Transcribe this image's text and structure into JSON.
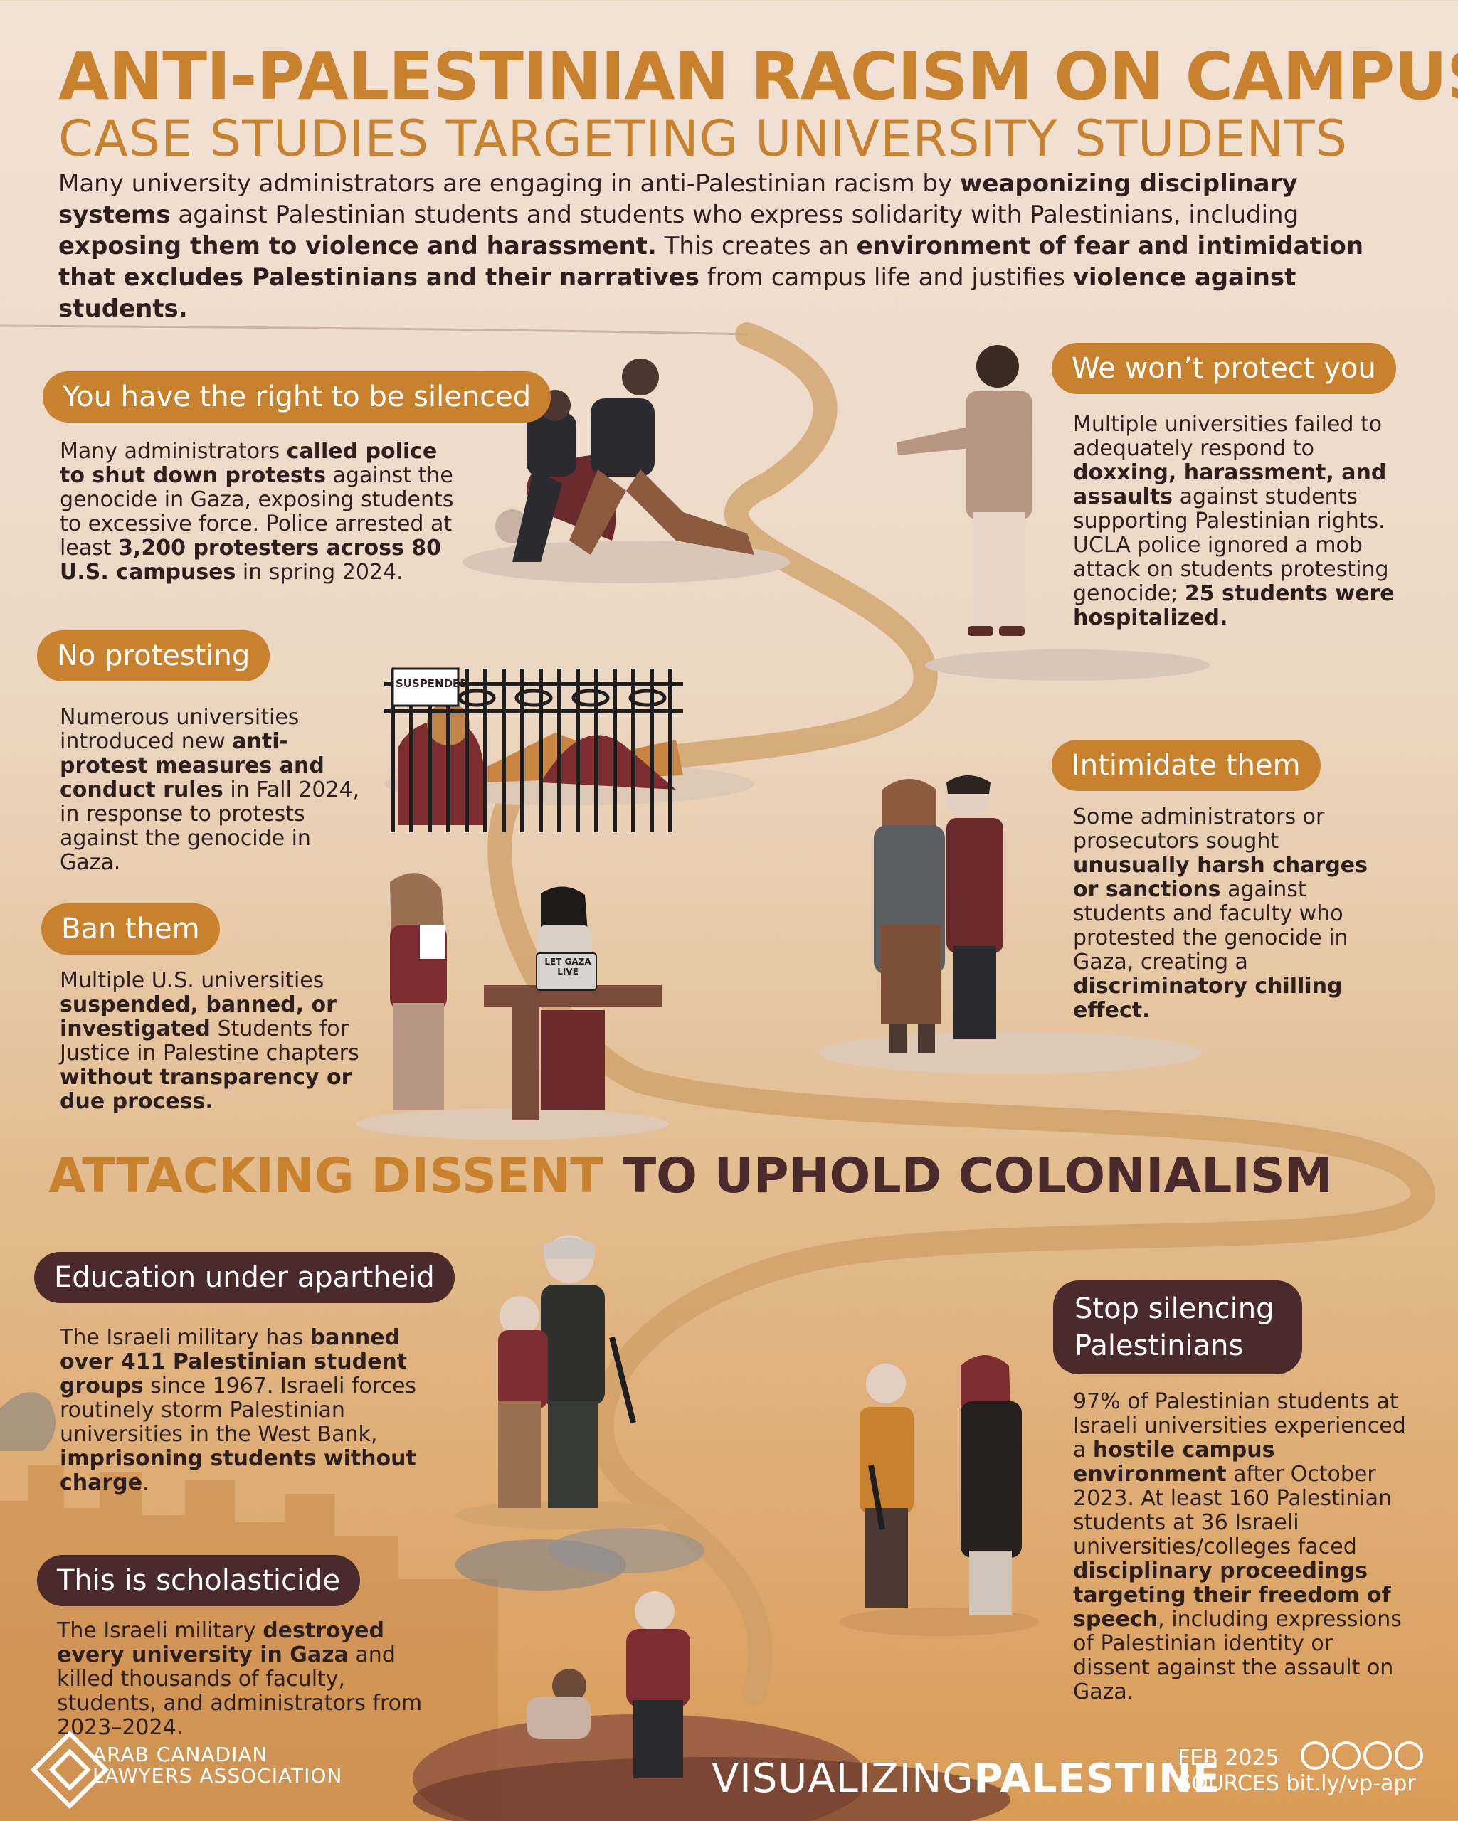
{
  "header": {
    "title": "ANTI-PALESTINIAN RACISM ON CAMPUS",
    "subtitle": "CASE STUDIES TARGETING UNIVERSITY STUDENTS",
    "intro": [
      {
        "t": "Many university administrators are engaging in anti-Palestinian racism by ",
        "b": false
      },
      {
        "t": "weaponizing disciplinary systems",
        "b": true
      },
      {
        "t": " against Palestinian students and students who express solidarity with Palestinians, including ",
        "b": false
      },
      {
        "t": "exposing them to violence and harassment.",
        "b": true
      },
      {
        "t": " This creates an ",
        "b": false
      },
      {
        "t": "environment of fear and intimidation that excludes Palestinians and their narratives",
        "b": true
      },
      {
        "t": " from campus life and justifies ",
        "b": false
      },
      {
        "t": "violence against students.",
        "b": true
      }
    ]
  },
  "sections": {
    "silenced": {
      "label": "You have the right to be silenced",
      "text": [
        {
          "t": "Many administrators ",
          "b": false
        },
        {
          "t": "called police to shut down protests",
          "b": true
        },
        {
          "t": " against the genocide in Gaza, exposing students to excessive force. Police arrested at least ",
          "b": false
        },
        {
          "t": "3,200 protesters across 80 U.S. campuses",
          "b": true
        },
        {
          "t": " in spring 2024.",
          "b": false
        }
      ]
    },
    "protect": {
      "label": "We won’t protect you",
      "text": [
        {
          "t": "Multiple universities failed to adequately respond to ",
          "b": false
        },
        {
          "t": "doxxing, harassment, and assaults",
          "b": true
        },
        {
          "t": " against students supporting Palestinian rights. UCLA police ignored a mob attack on students protesting genocide; ",
          "b": false
        },
        {
          "t": "25 students were hospitalized.",
          "b": true
        }
      ]
    },
    "no_protesting": {
      "label": "No protesting",
      "sign": "SUSPENDED",
      "text": [
        {
          "t": "Numerous universities introduced new ",
          "b": false
        },
        {
          "t": "anti-protest measures and conduct rules",
          "b": true
        },
        {
          "t": " in Fall 2024, in response to protests against the genocide in Gaza.",
          "b": false
        }
      ]
    },
    "intimidate": {
      "label": "Intimidate them",
      "text": [
        {
          "t": "Some administrators or prosecutors sought ",
          "b": false
        },
        {
          "t": "unusually harsh charges or sanctions",
          "b": true
        },
        {
          "t": " against students and faculty who protested the genocide in Gaza, creating a ",
          "b": false
        },
        {
          "t": "discriminatory chilling effect.",
          "b": true
        }
      ]
    },
    "ban": {
      "label": "Ban them",
      "laptop_sticker": "LET GAZA LIVE",
      "text": [
        {
          "t": "Multiple U.S. universities ",
          "b": false
        },
        {
          "t": "suspended, banned, or investigated",
          "b": true
        },
        {
          "t": " Students for Justice in Palestine chapters ",
          "b": false
        },
        {
          "t": "without transparency or due process.",
          "b": true
        }
      ]
    },
    "apartheid": {
      "label": "Education under apartheid",
      "text": [
        {
          "t": "The Israeli military has ",
          "b": false
        },
        {
          "t": "banned over 411 Palestinian student groups",
          "b": true
        },
        {
          "t": " since 1967. Israeli forces routinely storm Palestinian universities in the West Bank, ",
          "b": false
        },
        {
          "t": "imprisoning students without charge",
          "b": true
        },
        {
          "t": ".",
          "b": false
        }
      ]
    },
    "stop_silencing": {
      "label": "Stop silencing Palestinians",
      "text": [
        {
          "t": "97% of Palestinian students at Israeli universities experienced a ",
          "b": false
        },
        {
          "t": "hostile campus environment",
          "b": true
        },
        {
          "t": " after October 2023. At least 160 Palestinian students at 36 Israeli universities/colleges faced ",
          "b": false
        },
        {
          "t": "disciplinary proceedings targeting their freedom of speech",
          "b": true
        },
        {
          "t": ", including expressions of Palestinian identity or dissent against the assault on Gaza.",
          "b": false
        }
      ]
    },
    "scholasticide": {
      "label": "This is scholasticide",
      "text": [
        {
          "t": "The Israeli military ",
          "b": false
        },
        {
          "t": "destroyed every university in Gaza",
          "b": true
        },
        {
          "t": " and killed thousands of faculty, students, and administrators from 2023–2024.",
          "b": false
        }
      ]
    }
  },
  "middle_heading": {
    "part1": "ATTACKING DISSENT",
    "part2": "TO UPHOLD COLONIALISM"
  },
  "footer": {
    "org_line1": "ARAB CANADIAN",
    "org_line2": "LAWYERS ASSOCIATION",
    "brand_light": "VISUALIZING",
    "brand_bold": "PALESTINE",
    "date": "FEB 2025",
    "sources": "SOURCES bit.ly/vp-apr"
  },
  "colors": {
    "gold": "#c8822e",
    "dark": "#4a2a2b",
    "text": "#2e1f1f"
  }
}
